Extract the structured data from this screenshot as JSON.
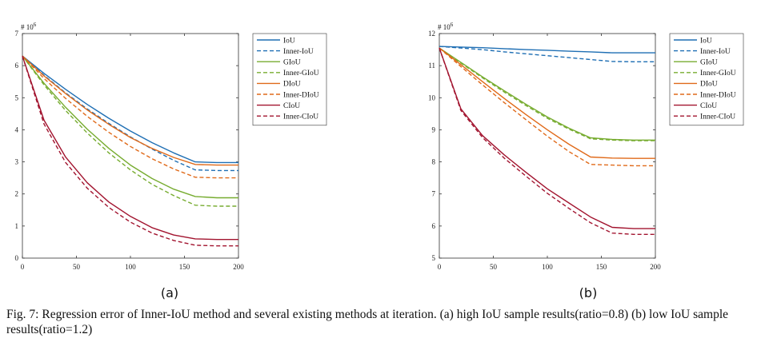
{
  "caption": "Fig. 7: Regression error of Inner-IoU method and several existing methods at iteration. (a) high IoU sample results(ratio=0.8) (b) low IoU sample results(ratio=1.2)",
  "colors": {
    "IoU": "#1f6fb4",
    "GIoU": "#77ac30",
    "DIoU": "#e06a1a",
    "CIoU": "#a2142f"
  },
  "chart_data": [
    {
      "type": "line",
      "panel_label": "(a)",
      "y_exponent_label": "# 10",
      "y_exponent_power": "6",
      "xlim": [
        0,
        200
      ],
      "ylim": [
        0,
        7
      ],
      "x_ticks": [
        0,
        50,
        100,
        150,
        200
      ],
      "y_ticks": [
        0,
        1,
        2,
        3,
        4,
        5,
        6,
        7
      ],
      "legend_position": "top-right-outside",
      "x": [
        0,
        20,
        40,
        60,
        80,
        100,
        120,
        140,
        160,
        180,
        200
      ],
      "series": [
        {
          "name": "IoU",
          "style": "solid",
          "color": "#1f6fb4",
          "values": [
            6.3,
            5.76,
            5.26,
            4.79,
            4.36,
            3.96,
            3.6,
            3.28,
            3.0,
            2.98,
            2.98
          ]
        },
        {
          "name": "Inner-IoU",
          "style": "dashed",
          "color": "#1f6fb4",
          "values": [
            6.3,
            5.7,
            5.15,
            4.65,
            4.2,
            3.78,
            3.4,
            3.05,
            2.75,
            2.73,
            2.73
          ]
        },
        {
          "name": "GIoU",
          "style": "solid",
          "color": "#77ac30",
          "values": [
            6.3,
            5.45,
            4.7,
            4.02,
            3.42,
            2.9,
            2.48,
            2.15,
            1.92,
            1.88,
            1.88
          ]
        },
        {
          "name": "Inner-GIoU",
          "style": "dashed",
          "color": "#77ac30",
          "values": [
            6.3,
            5.4,
            4.6,
            3.9,
            3.28,
            2.75,
            2.3,
            1.95,
            1.65,
            1.62,
            1.62
          ]
        },
        {
          "name": "DIoU",
          "style": "solid",
          "color": "#e06a1a",
          "values": [
            6.3,
            5.68,
            5.13,
            4.62,
            4.17,
            3.76,
            3.42,
            3.14,
            2.92,
            2.9,
            2.9
          ]
        },
        {
          "name": "Inner-DIoU",
          "style": "dashed",
          "color": "#e06a1a",
          "values": [
            6.3,
            5.6,
            4.98,
            4.42,
            3.92,
            3.48,
            3.1,
            2.78,
            2.52,
            2.5,
            2.5
          ]
        },
        {
          "name": "CIoU",
          "style": "solid",
          "color": "#a2142f",
          "values": [
            6.3,
            4.3,
            3.15,
            2.35,
            1.75,
            1.3,
            0.95,
            0.72,
            0.6,
            0.58,
            0.58
          ]
        },
        {
          "name": "Inner-CIoU",
          "style": "dashed",
          "color": "#a2142f",
          "values": [
            6.3,
            4.18,
            2.98,
            2.18,
            1.58,
            1.12,
            0.78,
            0.55,
            0.4,
            0.38,
            0.38
          ]
        }
      ]
    },
    {
      "type": "line",
      "panel_label": "(b)",
      "y_exponent_label": "# 10",
      "y_exponent_power": "6",
      "xlim": [
        0,
        200
      ],
      "ylim": [
        5,
        12
      ],
      "x_ticks": [
        0,
        50,
        100,
        150,
        200
      ],
      "y_ticks": [
        5,
        6,
        7,
        8,
        9,
        10,
        11,
        12
      ],
      "legend_position": "top-right-outside",
      "x": [
        0,
        20,
        40,
        60,
        80,
        100,
        120,
        140,
        160,
        180,
        200
      ],
      "series": [
        {
          "name": "IoU",
          "style": "solid",
          "color": "#1f6fb4",
          "values": [
            11.6,
            11.58,
            11.56,
            11.53,
            11.5,
            11.48,
            11.45,
            11.43,
            11.4,
            11.4,
            11.4
          ]
        },
        {
          "name": "Inner-IoU",
          "style": "dashed",
          "color": "#1f6fb4",
          "values": [
            11.6,
            11.55,
            11.5,
            11.43,
            11.37,
            11.31,
            11.25,
            11.19,
            11.13,
            11.12,
            11.12
          ]
        },
        {
          "name": "GIoU",
          "style": "solid",
          "color": "#77ac30",
          "values": [
            11.55,
            11.1,
            10.65,
            10.22,
            9.8,
            9.4,
            9.05,
            8.75,
            8.7,
            8.68,
            8.68
          ]
        },
        {
          "name": "Inner-GIoU",
          "style": "dashed",
          "color": "#77ac30",
          "values": [
            11.55,
            11.08,
            10.62,
            10.18,
            9.76,
            9.36,
            9.02,
            8.72,
            8.68,
            8.66,
            8.66
          ]
        },
        {
          "name": "DIoU",
          "style": "solid",
          "color": "#e06a1a",
          "values": [
            11.55,
            11.03,
            10.5,
            9.98,
            9.48,
            9.0,
            8.55,
            8.15,
            8.12,
            8.11,
            8.11
          ]
        },
        {
          "name": "Inner-DIoU",
          "style": "dashed",
          "color": "#e06a1a",
          "values": [
            11.55,
            10.97,
            10.4,
            9.85,
            9.32,
            8.8,
            8.32,
            7.92,
            7.9,
            7.88,
            7.88
          ]
        },
        {
          "name": "CIoU",
          "style": "solid",
          "color": "#a2142f",
          "values": [
            11.55,
            9.65,
            8.82,
            8.22,
            7.68,
            7.16,
            6.72,
            6.28,
            5.96,
            5.92,
            5.92
          ]
        },
        {
          "name": "Inner-CIoU",
          "style": "dashed",
          "color": "#a2142f",
          "values": [
            11.55,
            9.6,
            8.76,
            8.12,
            7.56,
            7.02,
            6.55,
            6.1,
            5.78,
            5.74,
            5.74
          ]
        }
      ]
    }
  ]
}
